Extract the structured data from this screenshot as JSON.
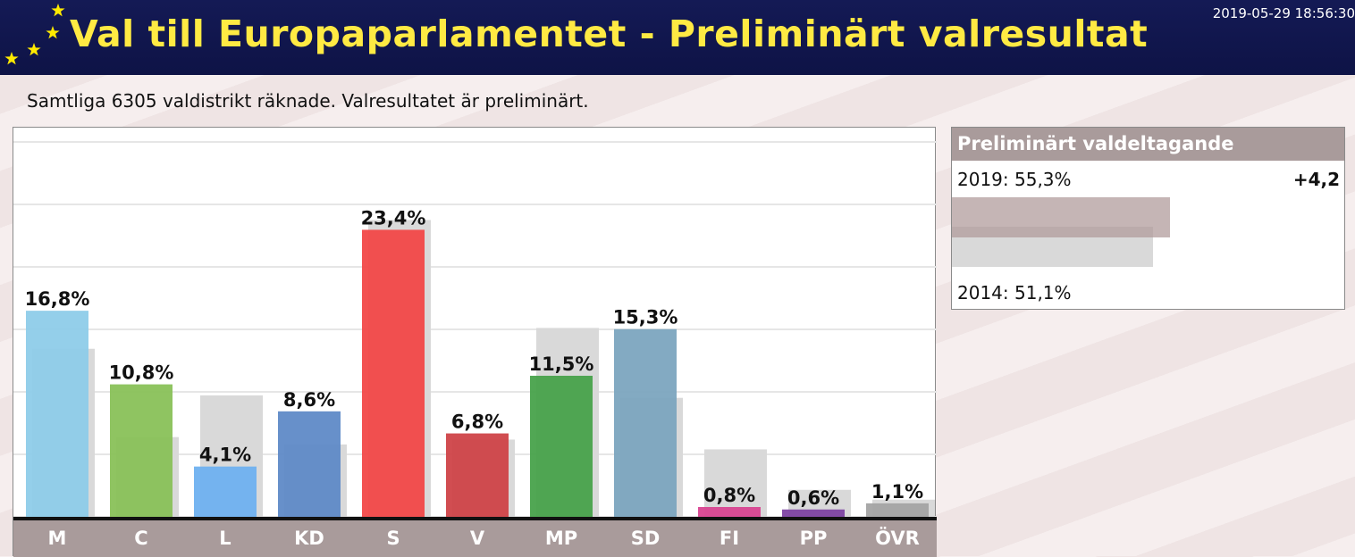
{
  "header": {
    "title": "Val till Europaparlamentet - Preliminärt valresultat",
    "timestamp": "2019-05-29 18:56:30"
  },
  "status_text": "Samtliga 6305 valdistrikt räknade. Valresultatet är preliminärt.",
  "colors": {
    "header_bg": "#141a55",
    "title": "#ffea43",
    "category_bar": "#a99b9b",
    "previous_result": "#d9d9d9"
  },
  "turnout": {
    "title": "Preliminärt valdeltagande",
    "current_label": "2019: 55,3%",
    "previous_label": "2014: 51,1%",
    "difference": "+4,2",
    "current_value": 55.3,
    "previous_value": 51.1
  },
  "chart_data": {
    "type": "bar",
    "categories": [
      "M",
      "C",
      "L",
      "KD",
      "S",
      "V",
      "MP",
      "SD",
      "FI",
      "PP",
      "ÖVR"
    ],
    "series": [
      {
        "values": [
          16.8,
          10.8,
          4.1,
          8.6,
          23.4,
          6.8,
          11.5,
          15.3,
          0.8,
          0.6,
          1.1
        ],
        "labels": [
          "16,8%",
          "10,8%",
          "4,1%",
          "8,6%",
          "23,4%",
          "6,8%",
          "11,5%",
          "15,3%",
          "0,8%",
          "0,6%",
          "1,1%"
        ],
        "colors": [
          "#8ccbe8",
          "#86bf55",
          "#6caff0",
          "#5b88c6",
          "#f24444",
          "#ce3f44",
          "#44a047",
          "#7aa4bd",
          "#d8418f",
          "#7b3fa0",
          "#a3a3a3"
        ]
      },
      {
        "values": [
          13.7,
          6.5,
          9.9,
          5.9,
          24.2,
          6.3,
          15.4,
          9.7,
          5.5,
          2.2,
          1.4
        ]
      }
    ],
    "ylim": [
      0,
      31
    ],
    "grid": true,
    "xlabel": "",
    "ylabel": ""
  }
}
